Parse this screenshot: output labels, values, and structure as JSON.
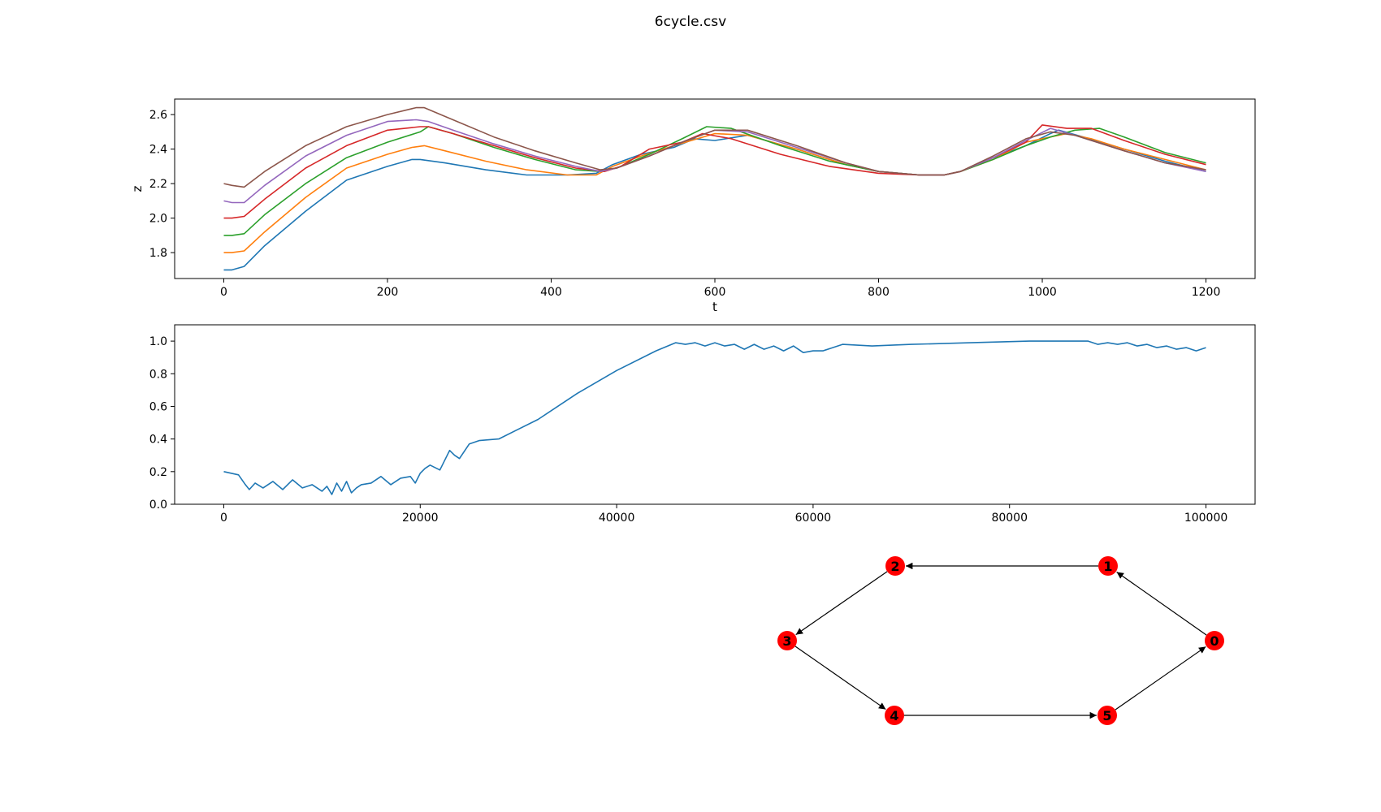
{
  "figure_title": "6cycle.csv",
  "chart_data": [
    {
      "type": "line",
      "title": "",
      "xlabel": "t",
      "ylabel": "z",
      "xlim": [
        -60,
        1260
      ],
      "ylim": [
        1.65,
        2.69
      ],
      "xticks": [
        0,
        200,
        400,
        600,
        800,
        1000,
        1200
      ],
      "yticks": [
        1.8,
        2.0,
        2.2,
        2.4,
        2.6
      ],
      "ytick_labels": [
        "1.8",
        "2.0",
        "2.2",
        "2.4",
        "2.6"
      ],
      "grid": false,
      "series": [
        {
          "color": "#1f77b4",
          "x": [
            0,
            10,
            25,
            50,
            100,
            150,
            200,
            230,
            240,
            270,
            320,
            370,
            420,
            455,
            475,
            510,
            550,
            575,
            600,
            640,
            700,
            760,
            800,
            850,
            880,
            900,
            940,
            980,
            1010,
            1020,
            1050,
            1100,
            1150,
            1200
          ],
          "y": [
            1.7,
            1.7,
            1.72,
            1.84,
            2.04,
            2.22,
            2.3,
            2.34,
            2.34,
            2.32,
            2.28,
            2.25,
            2.25,
            2.26,
            2.31,
            2.37,
            2.41,
            2.46,
            2.45,
            2.48,
            2.4,
            2.31,
            2.27,
            2.25,
            2.25,
            2.27,
            2.35,
            2.42,
            2.49,
            2.51,
            2.47,
            2.4,
            2.33,
            2.27
          ]
        },
        {
          "color": "#ff7f0e",
          "x": [
            0,
            10,
            25,
            50,
            100,
            150,
            200,
            230,
            245,
            270,
            320,
            370,
            420,
            455,
            475,
            510,
            550,
            600,
            640,
            700,
            760,
            800,
            850,
            880,
            900,
            940,
            980,
            1010,
            1030,
            1060,
            1100,
            1150,
            1200
          ],
          "y": [
            1.8,
            1.8,
            1.81,
            1.92,
            2.12,
            2.29,
            2.37,
            2.41,
            2.42,
            2.39,
            2.33,
            2.28,
            2.25,
            2.25,
            2.3,
            2.36,
            2.42,
            2.49,
            2.48,
            2.4,
            2.31,
            2.27,
            2.25,
            2.25,
            2.27,
            2.34,
            2.44,
            2.47,
            2.49,
            2.46,
            2.4,
            2.34,
            2.28
          ]
        },
        {
          "color": "#2ca02c",
          "x": [
            0,
            10,
            25,
            50,
            100,
            150,
            200,
            240,
            250,
            280,
            330,
            380,
            430,
            460,
            480,
            520,
            560,
            590,
            620,
            680,
            740,
            800,
            850,
            880,
            900,
            940,
            980,
            1010,
            1040,
            1070,
            1100,
            1150,
            1200
          ],
          "y": [
            1.9,
            1.9,
            1.91,
            2.02,
            2.2,
            2.35,
            2.44,
            2.5,
            2.53,
            2.49,
            2.41,
            2.34,
            2.28,
            2.27,
            2.29,
            2.37,
            2.46,
            2.53,
            2.52,
            2.42,
            2.33,
            2.27,
            2.25,
            2.25,
            2.27,
            2.34,
            2.42,
            2.47,
            2.51,
            2.52,
            2.47,
            2.38,
            2.32
          ]
        },
        {
          "color": "#d62728",
          "x": [
            0,
            10,
            25,
            50,
            100,
            150,
            200,
            240,
            250,
            280,
            330,
            380,
            430,
            465,
            485,
            520,
            560,
            585,
            620,
            680,
            740,
            800,
            850,
            880,
            900,
            940,
            980,
            1000,
            1030,
            1060,
            1100,
            1150,
            1200
          ],
          "y": [
            2.0,
            2.0,
            2.01,
            2.11,
            2.29,
            2.42,
            2.51,
            2.53,
            2.53,
            2.49,
            2.42,
            2.35,
            2.29,
            2.27,
            2.3,
            2.4,
            2.44,
            2.49,
            2.46,
            2.37,
            2.3,
            2.26,
            2.25,
            2.25,
            2.27,
            2.35,
            2.44,
            2.54,
            2.52,
            2.52,
            2.45,
            2.37,
            2.31
          ]
        },
        {
          "color": "#9467bd",
          "x": [
            0,
            10,
            25,
            50,
            100,
            150,
            200,
            235,
            250,
            280,
            330,
            380,
            430,
            460,
            480,
            520,
            560,
            600,
            640,
            700,
            760,
            800,
            850,
            880,
            900,
            940,
            980,
            1010,
            1040,
            1100,
            1150,
            1200
          ],
          "y": [
            2.1,
            2.09,
            2.09,
            2.19,
            2.36,
            2.48,
            2.56,
            2.57,
            2.56,
            2.51,
            2.43,
            2.36,
            2.3,
            2.27,
            2.29,
            2.36,
            2.44,
            2.51,
            2.5,
            2.41,
            2.32,
            2.27,
            2.25,
            2.25,
            2.27,
            2.35,
            2.45,
            2.52,
            2.48,
            2.39,
            2.32,
            2.27
          ]
        },
        {
          "color": "#8c564b",
          "x": [
            0,
            10,
            25,
            50,
            100,
            150,
            200,
            235,
            245,
            280,
            330,
            380,
            430,
            460,
            480,
            520,
            560,
            600,
            640,
            700,
            760,
            800,
            850,
            880,
            900,
            940,
            980,
            1010,
            1040,
            1100,
            1150,
            1200
          ],
          "y": [
            2.2,
            2.19,
            2.18,
            2.27,
            2.42,
            2.53,
            2.6,
            2.64,
            2.64,
            2.57,
            2.47,
            2.39,
            2.32,
            2.28,
            2.29,
            2.36,
            2.44,
            2.51,
            2.51,
            2.42,
            2.32,
            2.27,
            2.25,
            2.25,
            2.27,
            2.36,
            2.46,
            2.5,
            2.48,
            2.39,
            2.32,
            2.28
          ]
        }
      ]
    },
    {
      "type": "line",
      "title": "",
      "xlabel": "",
      "ylabel": "",
      "xlim": [
        -5000,
        105000
      ],
      "ylim": [
        0.0,
        1.1
      ],
      "xticks": [
        0,
        20000,
        40000,
        60000,
        80000,
        100000
      ],
      "yticks": [
        0.0,
        0.2,
        0.4,
        0.6,
        0.8,
        1.0
      ],
      "ytick_labels": [
        "0.0",
        "0.2",
        "0.4",
        "0.6",
        "0.8",
        "1.0"
      ],
      "grid": false,
      "series": [
        {
          "color": "#1f77b4",
          "x": [
            0,
            1500,
            2200,
            2600,
            3200,
            4000,
            5000,
            6000,
            7000,
            8000,
            9000,
            10000,
            10500,
            11000,
            11500,
            12000,
            12500,
            13000,
            13500,
            14000,
            15000,
            16000,
            17000,
            18000,
            19000,
            19500,
            20000,
            20500,
            21000,
            22000,
            23000,
            23500,
            24000,
            25000,
            26000,
            28000,
            32000,
            36000,
            40000,
            44000,
            46000,
            47000,
            48000,
            49000,
            50000,
            51000,
            52000,
            53000,
            54000,
            55000,
            56000,
            57000,
            58000,
            59000,
            60000,
            61000,
            62000,
            63000,
            66000,
            70000,
            76000,
            82000,
            88000,
            89000,
            90000,
            91000,
            92000,
            93000,
            94000,
            95000,
            96000,
            97000,
            98000,
            99000,
            100000
          ],
          "y": [
            0.2,
            0.18,
            0.12,
            0.09,
            0.13,
            0.1,
            0.14,
            0.09,
            0.15,
            0.1,
            0.12,
            0.08,
            0.11,
            0.06,
            0.13,
            0.08,
            0.14,
            0.07,
            0.1,
            0.12,
            0.13,
            0.17,
            0.12,
            0.16,
            0.17,
            0.13,
            0.19,
            0.22,
            0.24,
            0.21,
            0.33,
            0.3,
            0.28,
            0.37,
            0.39,
            0.4,
            0.52,
            0.68,
            0.82,
            0.94,
            0.99,
            0.98,
            0.99,
            0.97,
            0.99,
            0.97,
            0.98,
            0.95,
            0.98,
            0.95,
            0.97,
            0.94,
            0.97,
            0.93,
            0.94,
            0.94,
            0.96,
            0.98,
            0.97,
            0.98,
            0.99,
            1.0,
            1.0,
            0.98,
            0.99,
            0.98,
            0.99,
            0.97,
            0.98,
            0.96,
            0.97,
            0.95,
            0.96,
            0.94,
            0.96
          ]
        }
      ]
    }
  ],
  "graph": {
    "nodes": [
      {
        "id": "0",
        "color": "#ff0000"
      },
      {
        "id": "1",
        "color": "#ff0000"
      },
      {
        "id": "2",
        "color": "#ff0000"
      },
      {
        "id": "3",
        "color": "#ff0000"
      },
      {
        "id": "4",
        "color": "#ff0000"
      },
      {
        "id": "5",
        "color": "#ff0000"
      }
    ],
    "edges": [
      [
        "0",
        "1"
      ],
      [
        "1",
        "2"
      ],
      [
        "2",
        "3"
      ],
      [
        "3",
        "4"
      ],
      [
        "4",
        "5"
      ],
      [
        "5",
        "0"
      ]
    ]
  }
}
